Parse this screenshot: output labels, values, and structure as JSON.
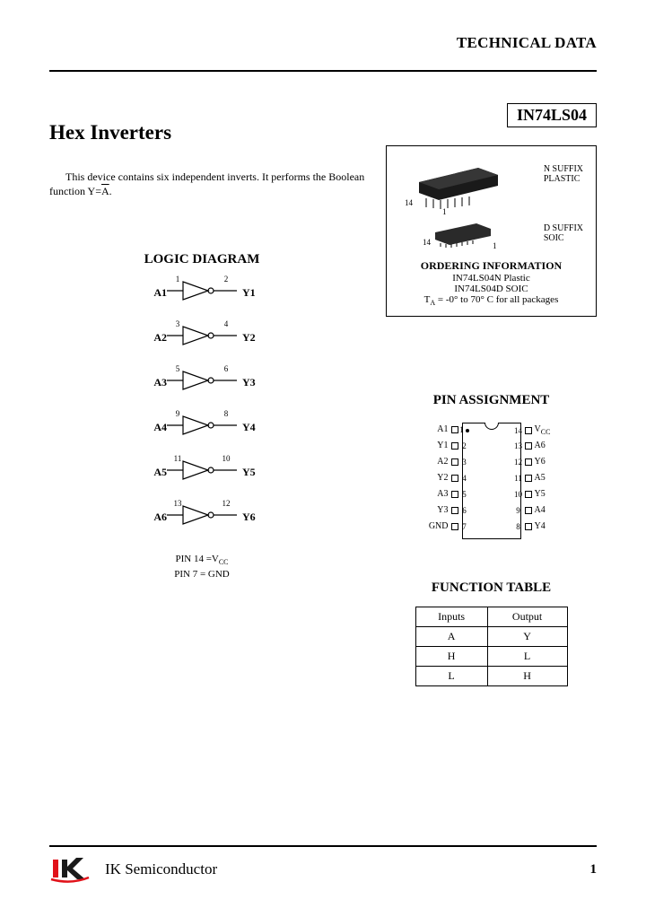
{
  "header": {
    "tech_data": "TECHNICAL DATA"
  },
  "part_number": "IN74LS04",
  "title": "Hex Inverters",
  "description_prefix": "This device contains six independent inverts. It performs the Boolean function Y=",
  "description_overline": "A",
  "description_suffix": ".",
  "package_box": {
    "n_suffix_l1": "N SUFFIX",
    "n_suffix_l2": "PLASTIC",
    "n_14": "14",
    "n_1": "1",
    "d_suffix_l1": "D SUFFIX",
    "d_suffix_l2": "SOIC",
    "d_14": "14",
    "d_1": "1",
    "order_title": "ORDERING INFORMATION",
    "order1": "IN74LS04N Plastic",
    "order2": "IN74LS04D   SOIC",
    "temp_prefix": "T",
    "temp_sub": "A",
    "temp_rest": " = -0° to 70° C for all packages"
  },
  "logic": {
    "title": "LOGIC DIAGRAM",
    "gates": [
      {
        "in": "A1",
        "pin_in": "1",
        "pin_out": "2",
        "out": "Y1"
      },
      {
        "in": "A2",
        "pin_in": "3",
        "pin_out": "4",
        "out": "Y2"
      },
      {
        "in": "A3",
        "pin_in": "5",
        "pin_out": "6",
        "out": "Y3"
      },
      {
        "in": "A4",
        "pin_in": "9",
        "pin_out": "8",
        "out": "Y4"
      },
      {
        "in": "A5",
        "pin_in": "11",
        "pin_out": "10",
        "out": "Y5"
      },
      {
        "in": "A6",
        "pin_in": "13",
        "pin_out": "12",
        "out": "Y6"
      }
    ],
    "note1_prefix": "PIN 14 =V",
    "note1_sub": "CC",
    "note2": "PIN 7 = GND"
  },
  "pin_assignment": {
    "title": "PIN ASSIGNMENT",
    "left": [
      {
        "n": "A1",
        "p": "1"
      },
      {
        "n": "Y1",
        "p": "2"
      },
      {
        "n": "A2",
        "p": "3"
      },
      {
        "n": "Y2",
        "p": "4"
      },
      {
        "n": "A3",
        "p": "5"
      },
      {
        "n": "Y3",
        "p": "6"
      },
      {
        "n": "GND",
        "p": "7"
      }
    ],
    "right": [
      {
        "n": "VCC",
        "p": "14"
      },
      {
        "n": "A6",
        "p": "13"
      },
      {
        "n": "Y6",
        "p": "12"
      },
      {
        "n": "A5",
        "p": "11"
      },
      {
        "n": "Y5",
        "p": "10"
      },
      {
        "n": "A4",
        "p": "9"
      },
      {
        "n": "Y4",
        "p": "8"
      }
    ]
  },
  "function_table": {
    "title": "FUNCTION TABLE",
    "head_in": "Inputs",
    "head_out": "Output",
    "col_a": "A",
    "col_y": "Y",
    "rows": [
      [
        "H",
        "L"
      ],
      [
        "L",
        "H"
      ]
    ]
  },
  "footer": {
    "brand": "IK Semiconductor",
    "sub": "Semiconductor",
    "page": "1"
  },
  "colors": {
    "text": "#000000",
    "bg": "#ffffff",
    "logo_red": "#e1121a",
    "logo_dark": "#1a1a1a"
  }
}
